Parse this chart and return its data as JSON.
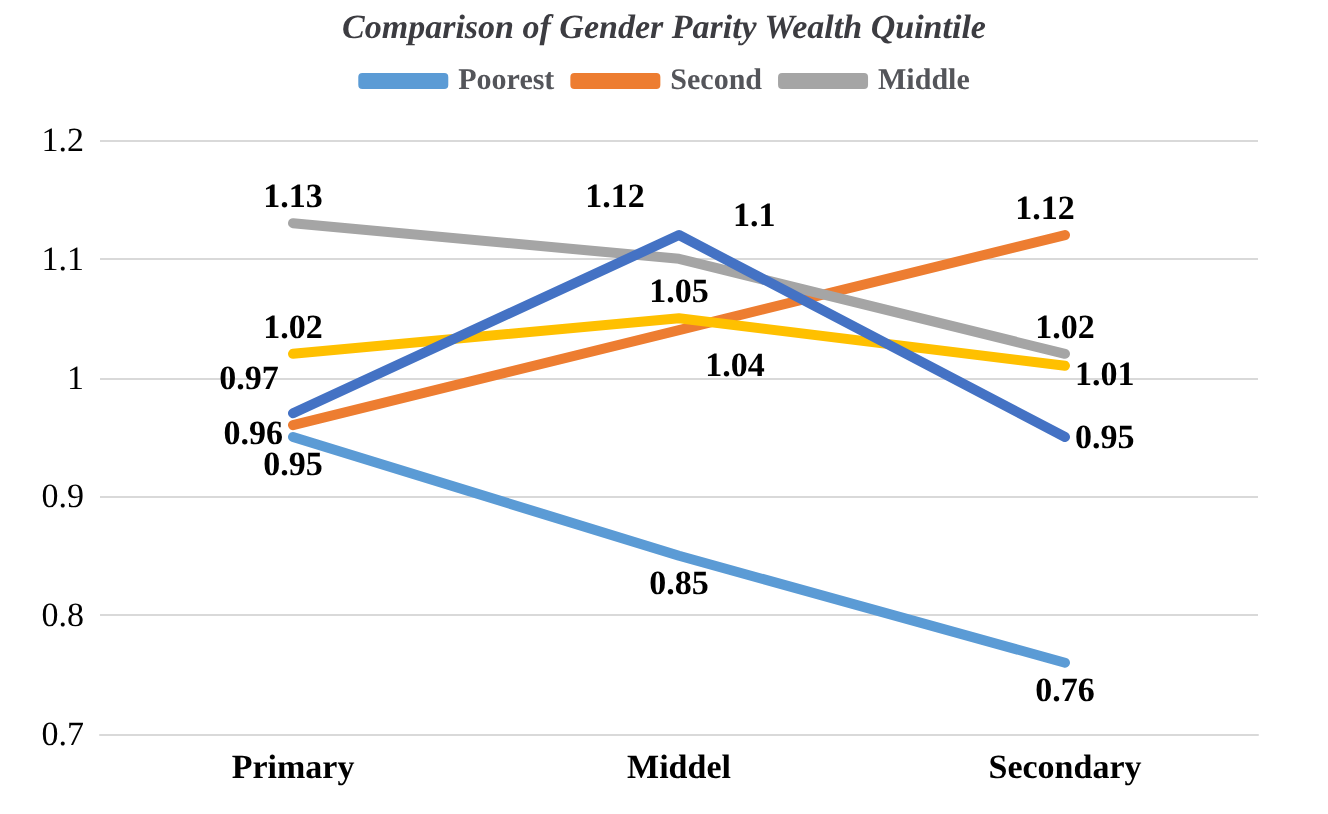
{
  "chart_data": {
    "type": "line",
    "title": "Comparison of Gender Parity Wealth Quintile",
    "categories": [
      "Primary",
      "Middel",
      "Secondary"
    ],
    "series": [
      {
        "name": "Poorest",
        "color": "#5b9bd5",
        "values": [
          0.95,
          0.85,
          0.76
        ]
      },
      {
        "name": "Second",
        "color": "#ed7d31",
        "values": [
          0.96,
          1.04,
          1.12
        ]
      },
      {
        "name": "Middle",
        "color": "#a5a5a5",
        "values": [
          1.13,
          1.1,
          1.02
        ]
      },
      {
        "color": "#ffc000",
        "values": [
          1.02,
          1.05,
          1.01
        ]
      },
      {
        "color": "#4472c4",
        "values": [
          0.97,
          1.12,
          0.95
        ]
      }
    ],
    "ylim": [
      0.7,
      1.2
    ],
    "yticks": [
      0.7,
      0.8,
      0.9,
      1,
      1.1,
      1.2
    ],
    "grid": "y",
    "legend": "top",
    "data_labels": true,
    "marker": "none",
    "line_style": "solid"
  }
}
